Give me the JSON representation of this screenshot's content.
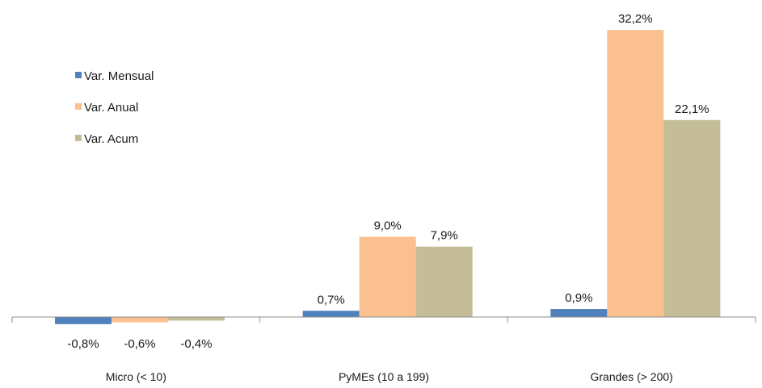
{
  "chart_data": {
    "type": "bar",
    "categories": [
      "Micro (< 10)",
      "PyMEs (10 a 199)",
      "Grandes (> 200)"
    ],
    "series": [
      {
        "name": "Var. Mensual",
        "values": [
          -0.8,
          0.7,
          0.9
        ],
        "labels": [
          "-0,8%",
          "0,7%",
          "0,9%"
        ],
        "color": "#4f81bd"
      },
      {
        "name": "Var. Anual",
        "values": [
          -0.6,
          9.0,
          32.2
        ],
        "labels": [
          "-0,6%",
          "9,0%",
          "32,2%"
        ],
        "color": "#fac090"
      },
      {
        "name": "Var. Acum",
        "values": [
          -0.4,
          7.9,
          22.1
        ],
        "labels": [
          "-0,4%",
          "7,9%",
          "22,1%"
        ],
        "color": "#c4bd97"
      }
    ],
    "legend_position": "top-left",
    "grid": false,
    "y_axis_visible": false
  }
}
